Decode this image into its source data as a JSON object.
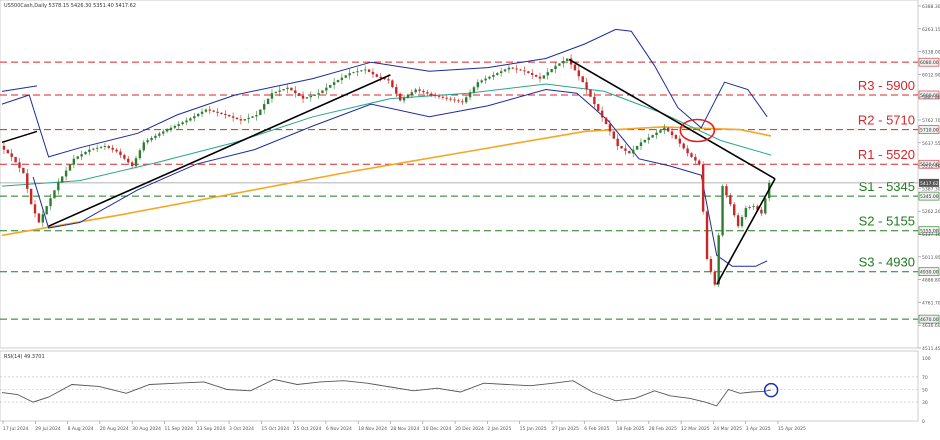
{
  "header": {
    "symbol_line": "US500Cash,Daily  5378.15 5426.30 5351.40 5417.62"
  },
  "rsi_header": "RSI(14) 49.3701",
  "colors": {
    "levels": "#d9262a",
    "supports": "#1f7a1f",
    "candle_up": "#2e7d32",
    "candle_down": "#c62828",
    "ma200": "#f5a623",
    "bollinger": "#1a2c9c",
    "ma50": "#2aa58a",
    "trendline": "#000000",
    "rsi_line": "#555555",
    "highlight_circle_red": "#e02020",
    "highlight_circle_blue": "#1a2fbf"
  },
  "levels": [
    {
      "name": "R3",
      "label": "R3 - 5900",
      "value": 5900,
      "tag": "5900.00",
      "kind": "resistance"
    },
    {
      "name": "R2",
      "label": "R2 - 5710",
      "value": 5710,
      "tag": "5710.00",
      "kind": "resistance"
    },
    {
      "name": "R1",
      "label": "R1 - 5520",
      "value": 5520,
      "tag": "5520.00",
      "kind": "resistance"
    },
    {
      "name": "S1",
      "label": "S1 - 5345",
      "value": 5345,
      "tag": "5345.00",
      "kind": "support"
    },
    {
      "name": "S2",
      "label": "S2 - 5155",
      "value": 5155,
      "tag": "5155.00",
      "kind": "support"
    },
    {
      "name": "S3",
      "label": "S3 - 4930",
      "value": 4930,
      "tag": "4930.00",
      "kind": "support"
    }
  ],
  "extra_lines": [
    {
      "value": 6080,
      "tag": "6080.00",
      "color": "#d9262a"
    },
    {
      "value": 4670,
      "tag": "4670.00",
      "color": "#1f7a1f"
    }
  ],
  "current_price": {
    "value": 5417.62,
    "tag": "5417.62"
  },
  "chart_data": {
    "type": "line",
    "price_axis_ticks": [
      "6388.30",
      "6263.15",
      "6138.00",
      "6012.90",
      "5887.80",
      "5762.70",
      "5637.55",
      "5512.40",
      "5387.30",
      "5262.20",
      "5137.10",
      "5011.95",
      "4886.80",
      "4761.70",
      "4636.60",
      "4511.45"
    ],
    "date_axis_ticks": [
      "17 Jul 2024",
      "29 Jul 2024",
      "8 Aug 2024",
      "20 Aug 2024",
      "30 Aug 2024",
      "11 Sep 2024",
      "23 Sep 2024",
      "3 Oct 2024",
      "15 Oct 2024",
      "25 Oct 2024",
      "6 Nov 2024",
      "18 Nov 2024",
      "28 Nov 2024",
      "10 Dec 2024",
      "20 Dec 2024",
      "2 Jan 2025",
      "15 Jan 2025",
      "27 Jan 2025",
      "6 Feb 2025",
      "18 Feb 2025",
      "28 Feb 2025",
      "12 Mar 2025",
      "24 Mar 2025",
      "3 Apr 2025",
      "15 Apr 2025"
    ],
    "ylim": [
      4511.45,
      6388.3
    ],
    "price_series": [
      {
        "x": 0,
        "y": 5620
      },
      {
        "x": 3,
        "y": 5560
      },
      {
        "x": 6,
        "y": 5470
      },
      {
        "x": 8,
        "y": 5300
      },
      {
        "x": 10,
        "y": 5200
      },
      {
        "x": 12,
        "y": 5290
      },
      {
        "x": 15,
        "y": 5420
      },
      {
        "x": 19,
        "y": 5550
      },
      {
        "x": 23,
        "y": 5600
      },
      {
        "x": 27,
        "y": 5620
      },
      {
        "x": 30,
        "y": 5590
      },
      {
        "x": 34,
        "y": 5510
      },
      {
        "x": 37,
        "y": 5640
      },
      {
        "x": 42,
        "y": 5700
      },
      {
        "x": 48,
        "y": 5760
      },
      {
        "x": 53,
        "y": 5820
      },
      {
        "x": 58,
        "y": 5790
      },
      {
        "x": 62,
        "y": 5760
      },
      {
        "x": 66,
        "y": 5790
      },
      {
        "x": 70,
        "y": 5910
      },
      {
        "x": 74,
        "y": 5940
      },
      {
        "x": 78,
        "y": 5880
      },
      {
        "x": 82,
        "y": 5910
      },
      {
        "x": 86,
        "y": 5970
      },
      {
        "x": 90,
        "y": 6020
      },
      {
        "x": 94,
        "y": 6040
      },
      {
        "x": 97,
        "y": 6000
      },
      {
        "x": 100,
        "y": 5980
      },
      {
        "x": 103,
        "y": 5870
      },
      {
        "x": 107,
        "y": 5930
      },
      {
        "x": 111,
        "y": 5900
      },
      {
        "x": 115,
        "y": 5880
      },
      {
        "x": 119,
        "y": 5860
      },
      {
        "x": 123,
        "y": 5970
      },
      {
        "x": 127,
        "y": 6010
      },
      {
        "x": 131,
        "y": 6050
      },
      {
        "x": 135,
        "y": 6030
      },
      {
        "x": 139,
        "y": 5990
      },
      {
        "x": 143,
        "y": 6060
      },
      {
        "x": 146,
        "y": 6100
      },
      {
        "x": 150,
        "y": 5970
      },
      {
        "x": 153,
        "y": 5850
      },
      {
        "x": 156,
        "y": 5740
      },
      {
        "x": 159,
        "y": 5620
      },
      {
        "x": 162,
        "y": 5580
      },
      {
        "x": 165,
        "y": 5640
      },
      {
        "x": 168,
        "y": 5680
      },
      {
        "x": 171,
        "y": 5720
      },
      {
        "x": 174,
        "y": 5660
      },
      {
        "x": 177,
        "y": 5580
      },
      {
        "x": 180,
        "y": 5520
      },
      {
        "x": 182,
        "y": 5000
      },
      {
        "x": 184,
        "y": 4860
      },
      {
        "x": 186,
        "y": 5400
      },
      {
        "x": 188,
        "y": 5300
      },
      {
        "x": 190,
        "y": 5180
      },
      {
        "x": 192,
        "y": 5280
      },
      {
        "x": 194,
        "y": 5290
      },
      {
        "x": 196,
        "y": 5250
      },
      {
        "x": 198,
        "y": 5417.62
      }
    ],
    "ma200_series": [
      {
        "x": 0,
        "y": 5130
      },
      {
        "x": 30,
        "y": 5240
      },
      {
        "x": 60,
        "y": 5360
      },
      {
        "x": 90,
        "y": 5480
      },
      {
        "x": 120,
        "y": 5590
      },
      {
        "x": 150,
        "y": 5700
      },
      {
        "x": 170,
        "y": 5725
      },
      {
        "x": 190,
        "y": 5710
      },
      {
        "x": 198,
        "y": 5675
      }
    ],
    "ma50_series": [
      {
        "x": 0,
        "y": 5400
      },
      {
        "x": 20,
        "y": 5430
      },
      {
        "x": 40,
        "y": 5530
      },
      {
        "x": 60,
        "y": 5640
      },
      {
        "x": 80,
        "y": 5780
      },
      {
        "x": 100,
        "y": 5880
      },
      {
        "x": 120,
        "y": 5910
      },
      {
        "x": 140,
        "y": 5960
      },
      {
        "x": 155,
        "y": 5920
      },
      {
        "x": 170,
        "y": 5800
      },
      {
        "x": 185,
        "y": 5650
      },
      {
        "x": 198,
        "y": 5570
      }
    ],
    "bb_upper_series": [
      {
        "x": 0,
        "y": 5850
      },
      {
        "x": 7,
        "y": 5900
      },
      {
        "x": 12,
        "y": 5560
      },
      {
        "x": 20,
        "y": 5610
      },
      {
        "x": 35,
        "y": 5690
      },
      {
        "x": 45,
        "y": 5790
      },
      {
        "x": 60,
        "y": 5900
      },
      {
        "x": 80,
        "y": 5990
      },
      {
        "x": 95,
        "y": 6080
      },
      {
        "x": 110,
        "y": 6030
      },
      {
        "x": 125,
        "y": 6050
      },
      {
        "x": 140,
        "y": 6100
      },
      {
        "x": 150,
        "y": 6180
      },
      {
        "x": 158,
        "y": 6260
      },
      {
        "x": 162,
        "y": 6250
      },
      {
        "x": 168,
        "y": 6060
      },
      {
        "x": 174,
        "y": 5830
      },
      {
        "x": 180,
        "y": 5720
      },
      {
        "x": 186,
        "y": 5970
      },
      {
        "x": 192,
        "y": 5930
      },
      {
        "x": 197,
        "y": 5780
      }
    ],
    "bb_lower_series": [
      {
        "x": 8,
        "y": 5450
      },
      {
        "x": 12,
        "y": 5170
      },
      {
        "x": 20,
        "y": 5200
      },
      {
        "x": 35,
        "y": 5380
      },
      {
        "x": 50,
        "y": 5520
      },
      {
        "x": 65,
        "y": 5600
      },
      {
        "x": 80,
        "y": 5730
      },
      {
        "x": 95,
        "y": 5850
      },
      {
        "x": 110,
        "y": 5780
      },
      {
        "x": 125,
        "y": 5840
      },
      {
        "x": 140,
        "y": 5930
      },
      {
        "x": 148,
        "y": 5910
      },
      {
        "x": 156,
        "y": 5760
      },
      {
        "x": 164,
        "y": 5550
      },
      {
        "x": 172,
        "y": 5510
      },
      {
        "x": 180,
        "y": 5460
      },
      {
        "x": 184,
        "y": 5020
      },
      {
        "x": 188,
        "y": 4960
      },
      {
        "x": 194,
        "y": 4960
      },
      {
        "x": 197,
        "y": 4990
      }
    ],
    "trendlines": [
      {
        "name": "rising-trendline",
        "points": [
          {
            "x": 12,
            "y": 5180
          },
          {
            "x": 100,
            "y": 6010
          }
        ]
      },
      {
        "name": "falling-trendline",
        "points": [
          {
            "x": 146,
            "y": 6095
          },
          {
            "x": 199,
            "y": 5440
          }
        ]
      },
      {
        "name": "rising-support-apr",
        "points": [
          {
            "x": 184,
            "y": 4860
          },
          {
            "x": 199,
            "y": 5440
          }
        ]
      }
    ],
    "rsi": {
      "ylim": [
        0,
        100
      ],
      "ticks": [
        "100",
        "70",
        "50",
        "30",
        "0"
      ],
      "values": [
        {
          "x": 0,
          "y": 45
        },
        {
          "x": 4,
          "y": 42
        },
        {
          "x": 8,
          "y": 30
        },
        {
          "x": 12,
          "y": 38
        },
        {
          "x": 18,
          "y": 58
        },
        {
          "x": 25,
          "y": 55
        },
        {
          "x": 32,
          "y": 44
        },
        {
          "x": 38,
          "y": 58
        },
        {
          "x": 45,
          "y": 60
        },
        {
          "x": 52,
          "y": 62
        },
        {
          "x": 58,
          "y": 50
        },
        {
          "x": 64,
          "y": 48
        },
        {
          "x": 70,
          "y": 66
        },
        {
          "x": 76,
          "y": 58
        },
        {
          "x": 82,
          "y": 62
        },
        {
          "x": 88,
          "y": 64
        },
        {
          "x": 94,
          "y": 60
        },
        {
          "x": 100,
          "y": 54
        },
        {
          "x": 106,
          "y": 48
        },
        {
          "x": 112,
          "y": 52
        },
        {
          "x": 118,
          "y": 46
        },
        {
          "x": 124,
          "y": 60
        },
        {
          "x": 130,
          "y": 58
        },
        {
          "x": 136,
          "y": 56
        },
        {
          "x": 142,
          "y": 60
        },
        {
          "x": 147,
          "y": 64
        },
        {
          "x": 152,
          "y": 46
        },
        {
          "x": 158,
          "y": 32
        },
        {
          "x": 163,
          "y": 36
        },
        {
          "x": 168,
          "y": 48
        },
        {
          "x": 172,
          "y": 40
        },
        {
          "x": 177,
          "y": 36
        },
        {
          "x": 181,
          "y": 30
        },
        {
          "x": 184,
          "y": 24
        },
        {
          "x": 187,
          "y": 50
        },
        {
          "x": 190,
          "y": 44
        },
        {
          "x": 193,
          "y": 46
        },
        {
          "x": 196,
          "y": 47
        },
        {
          "x": 198,
          "y": 49
        }
      ]
    }
  }
}
